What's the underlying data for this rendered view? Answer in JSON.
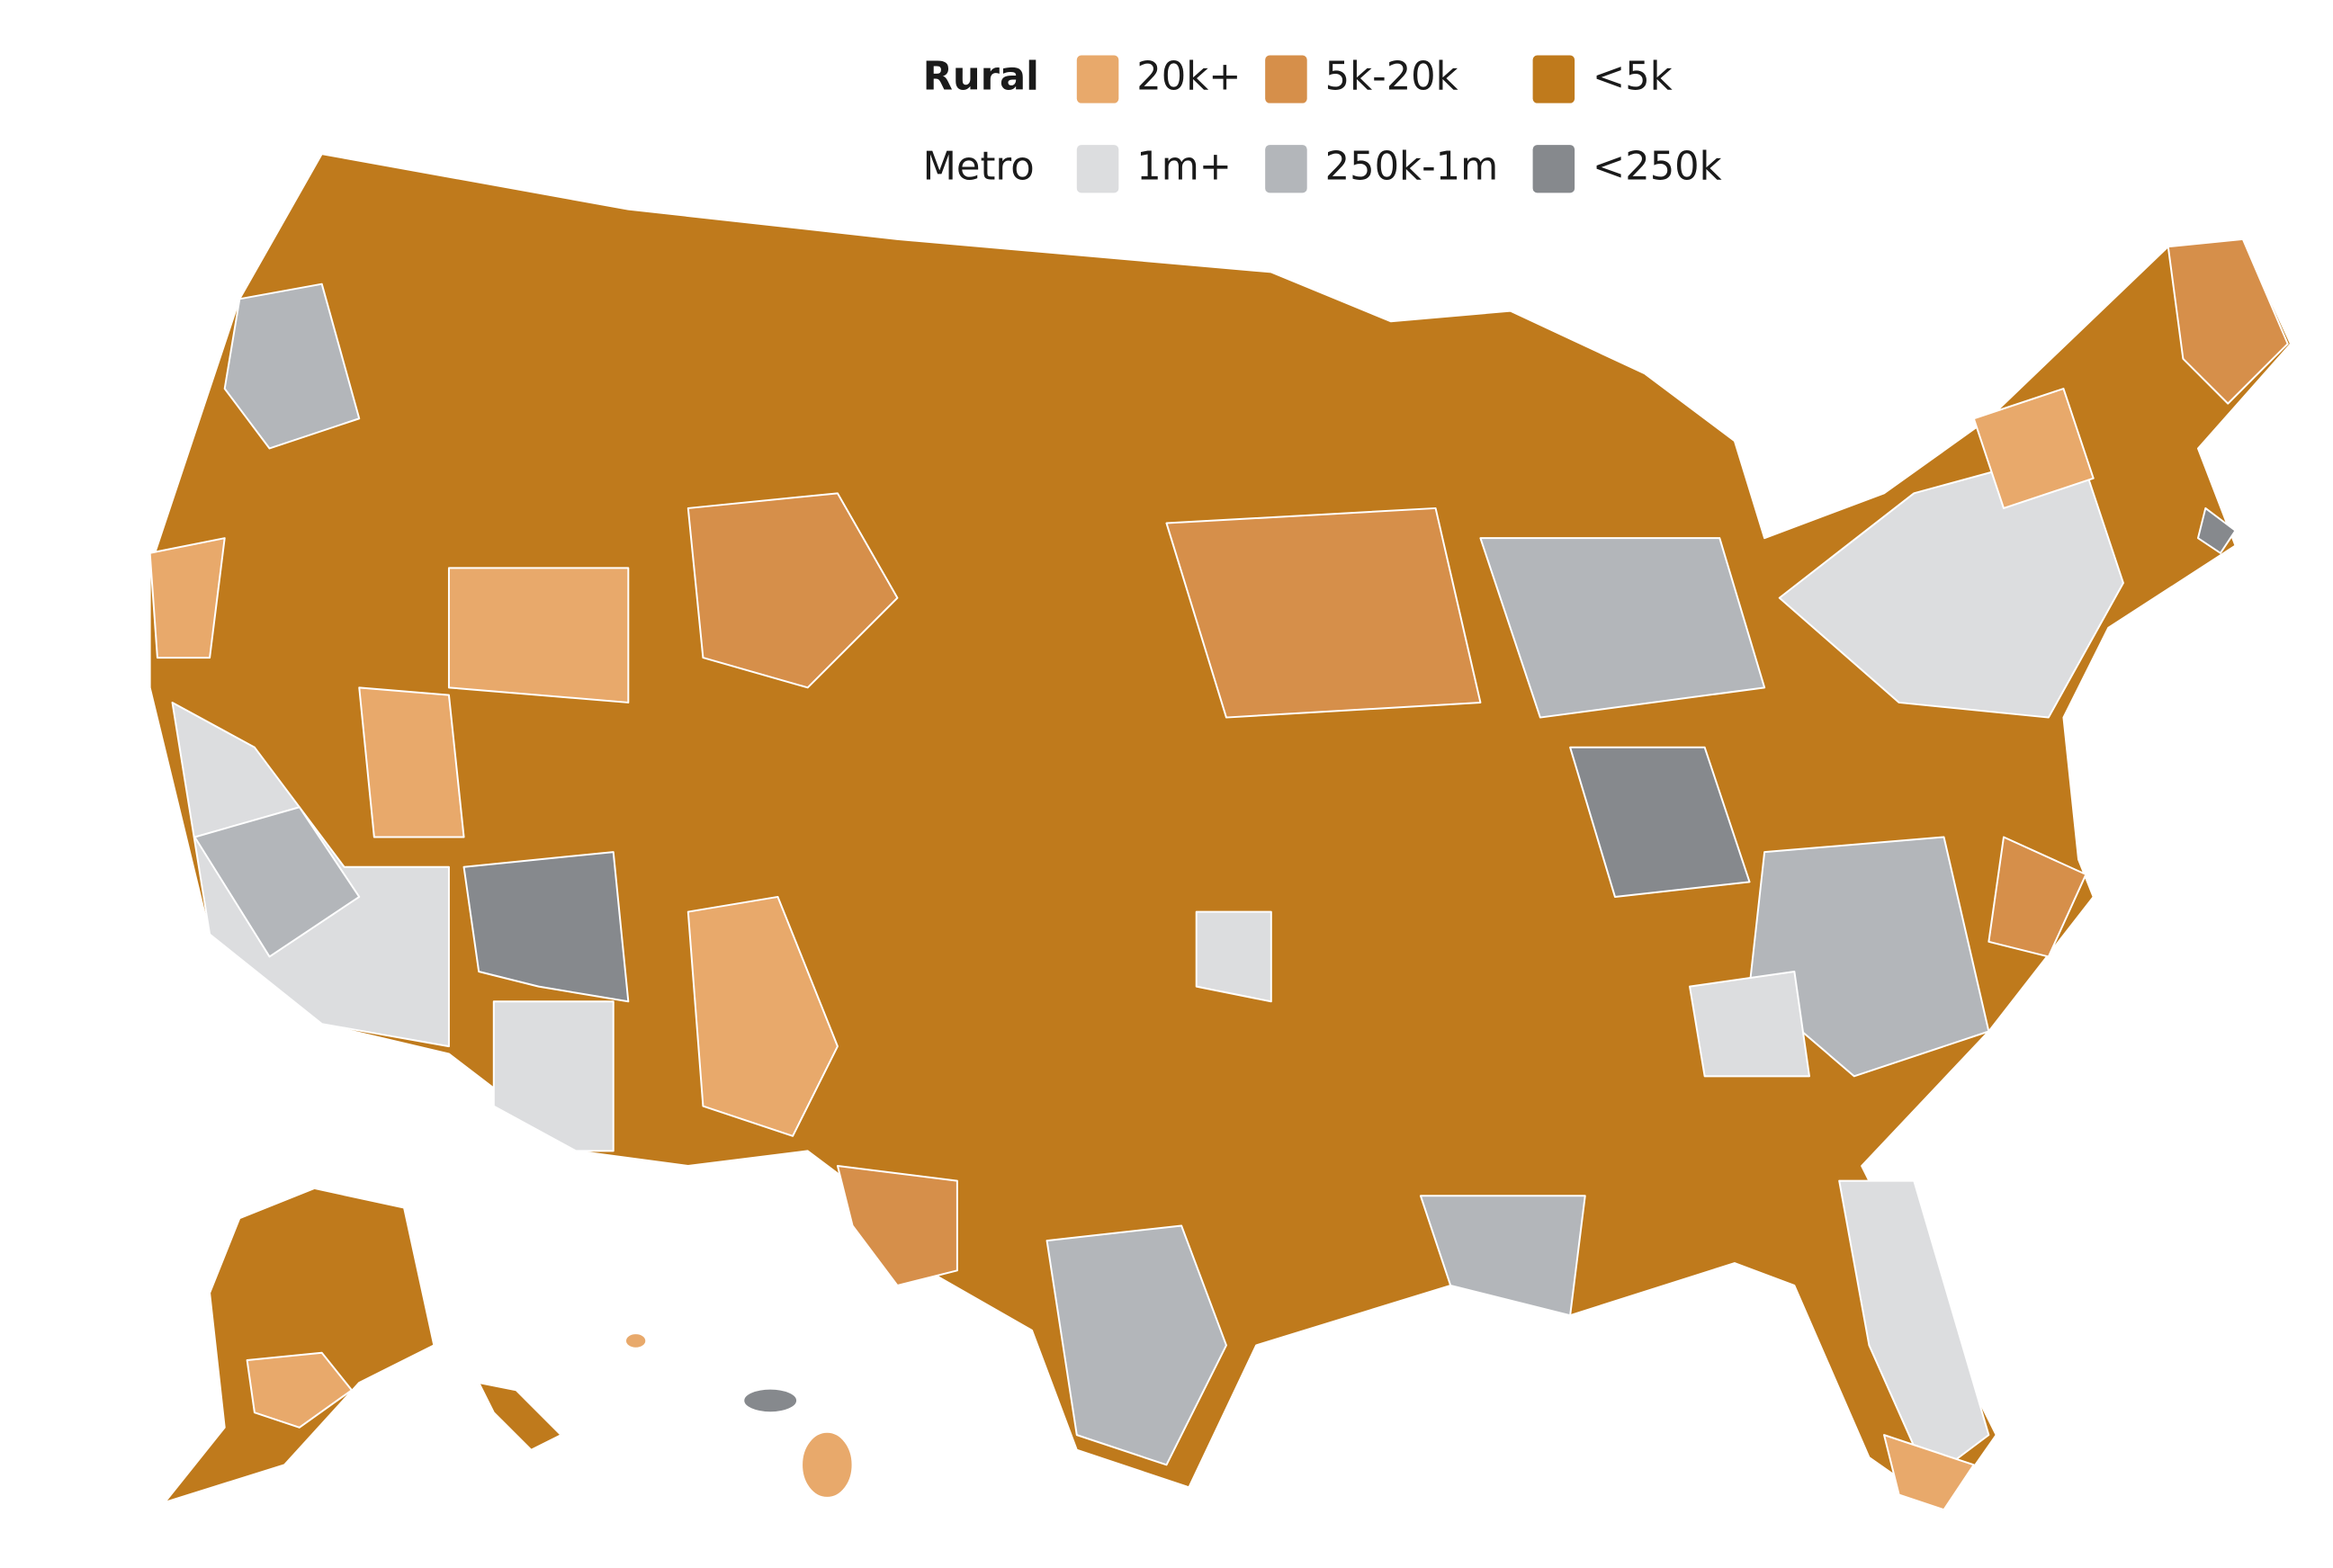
{
  "legend": {
    "rural": {
      "label": "Rural",
      "items": [
        {
          "label": "20k+",
          "color": "#e8a96b"
        },
        {
          "label": "5k-20k",
          "color": "#d68f4a"
        },
        {
          "label": "<5k",
          "color": "#bf7a1c"
        }
      ]
    },
    "metro": {
      "label": "Metro",
      "items": [
        {
          "label": "1m+",
          "color": "#dcdddf"
        },
        {
          "label": "250k-1m",
          "color": "#b3b6ba"
        },
        {
          "label": "<250k",
          "color": "#86898d"
        }
      ]
    }
  }
}
